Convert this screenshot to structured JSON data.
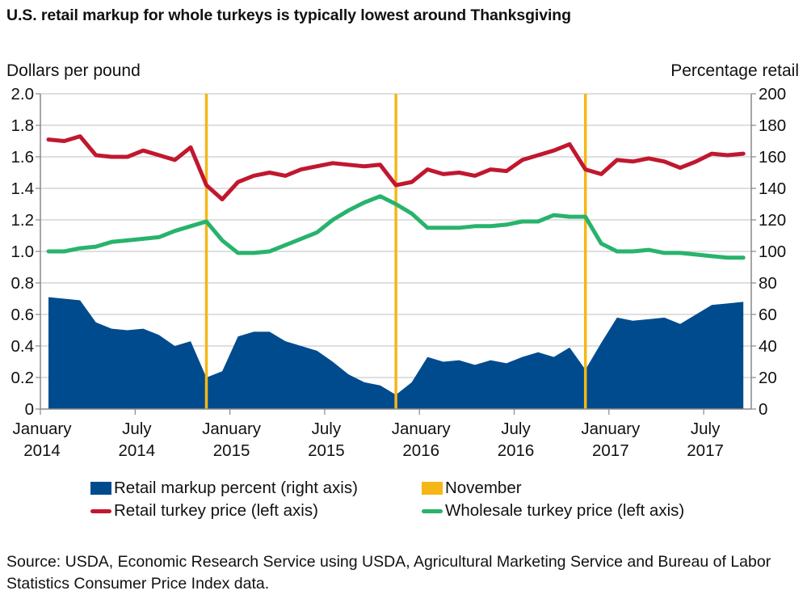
{
  "title": "U.S. retail markup for whole turkeys is typically lowest around Thanksgiving",
  "axes": {
    "left_label": "Dollars per pound",
    "right_label": "Percentage retail",
    "left_ticks": [
      "0",
      "0.2",
      "0.4",
      "0.6",
      "0.8",
      "1.0",
      "1.2",
      "1.4",
      "1.6",
      "1.8",
      "2.0"
    ],
    "right_ticks": [
      "0",
      "20",
      "40",
      "60",
      "80",
      "100",
      "120",
      "140",
      "160",
      "180",
      "200"
    ],
    "x_ticks": [
      {
        "line1": "January",
        "line2": "2014"
      },
      {
        "line1": "July",
        "line2": "2014"
      },
      {
        "line1": "January",
        "line2": "2015"
      },
      {
        "line1": "July",
        "line2": "2015"
      },
      {
        "line1": "January",
        "line2": "2016"
      },
      {
        "line1": "July",
        "line2": "2016"
      },
      {
        "line1": "January",
        "line2": "2017"
      },
      {
        "line1": "July",
        "line2": "2017"
      }
    ]
  },
  "legend": {
    "markup": "Retail markup percent (right axis)",
    "november": "November",
    "retail": "Retail turkey price (left axis)",
    "wholesale": "Wholesale turkey price (left axis)"
  },
  "colors": {
    "markup": "#004b8d",
    "november": "#f5b717",
    "retail": "#c0182f",
    "wholesale": "#28b36c",
    "grid": "#cccccc",
    "axis": "#888888"
  },
  "source": "Source: USDA, Economic Research Service using USDA, Agricultural Marketing Service and Bureau of Labor Statistics Consumer Price Index data.",
  "chart_data": {
    "type": "line",
    "title": "U.S. retail markup for whole turkeys is typically lowest around Thanksgiving",
    "xlabel": "",
    "ylabel": "Dollars per pound",
    "ylabel_right": "Percentage retail",
    "ylim": [
      0,
      2.0
    ],
    "ylim_right": [
      0,
      200
    ],
    "grid": true,
    "legend_position": "bottom",
    "x": [
      "2014-01",
      "2014-02",
      "2014-03",
      "2014-04",
      "2014-05",
      "2014-06",
      "2014-07",
      "2014-08",
      "2014-09",
      "2014-10",
      "2014-11",
      "2014-12",
      "2015-01",
      "2015-02",
      "2015-03",
      "2015-04",
      "2015-05",
      "2015-06",
      "2015-07",
      "2015-08",
      "2015-09",
      "2015-10",
      "2015-11",
      "2015-12",
      "2016-01",
      "2016-02",
      "2016-03",
      "2016-04",
      "2016-05",
      "2016-06",
      "2016-07",
      "2016-08",
      "2016-09",
      "2016-10",
      "2016-11",
      "2016-12",
      "2017-01",
      "2017-02",
      "2017-03",
      "2017-04",
      "2017-05",
      "2017-06",
      "2017-07",
      "2017-08",
      "2017-09"
    ],
    "november_markers": [
      "2014-11",
      "2015-11",
      "2016-11"
    ],
    "series": [
      {
        "name": "Retail markup percent (right axis)",
        "type": "area",
        "axis": "right",
        "values": [
          71,
          70,
          69,
          55,
          51,
          50,
          51,
          47,
          40,
          43,
          20,
          24,
          46,
          49,
          49,
          43,
          40,
          37,
          30,
          22,
          17,
          15,
          9,
          17,
          33,
          30,
          31,
          28,
          31,
          29,
          33,
          36,
          33,
          39,
          25,
          42,
          58,
          56,
          57,
          58,
          54,
          60,
          66,
          67,
          68
        ]
      },
      {
        "name": "Retail turkey price (left axis)",
        "type": "line",
        "axis": "left",
        "values": [
          1.71,
          1.7,
          1.73,
          1.61,
          1.6,
          1.6,
          1.64,
          1.61,
          1.58,
          1.66,
          1.42,
          1.33,
          1.44,
          1.48,
          1.5,
          1.48,
          1.52,
          1.54,
          1.56,
          1.55,
          1.54,
          1.55,
          1.42,
          1.44,
          1.52,
          1.49,
          1.5,
          1.48,
          1.52,
          1.51,
          1.58,
          1.61,
          1.64,
          1.68,
          1.52,
          1.49,
          1.58,
          1.57,
          1.59,
          1.57,
          1.53,
          1.57,
          1.62,
          1.61,
          1.62
        ]
      },
      {
        "name": "Wholesale turkey price (left axis)",
        "type": "line",
        "axis": "left",
        "values": [
          1.0,
          1.0,
          1.02,
          1.03,
          1.06,
          1.07,
          1.08,
          1.09,
          1.13,
          1.16,
          1.19,
          1.07,
          0.99,
          0.99,
          1.0,
          1.04,
          1.08,
          1.12,
          1.2,
          1.26,
          1.31,
          1.35,
          1.3,
          1.24,
          1.15,
          1.15,
          1.15,
          1.16,
          1.16,
          1.17,
          1.19,
          1.19,
          1.23,
          1.22,
          1.22,
          1.05,
          1.0,
          1.0,
          1.01,
          0.99,
          0.99,
          0.98,
          0.97,
          0.96,
          0.96
        ]
      }
    ]
  }
}
